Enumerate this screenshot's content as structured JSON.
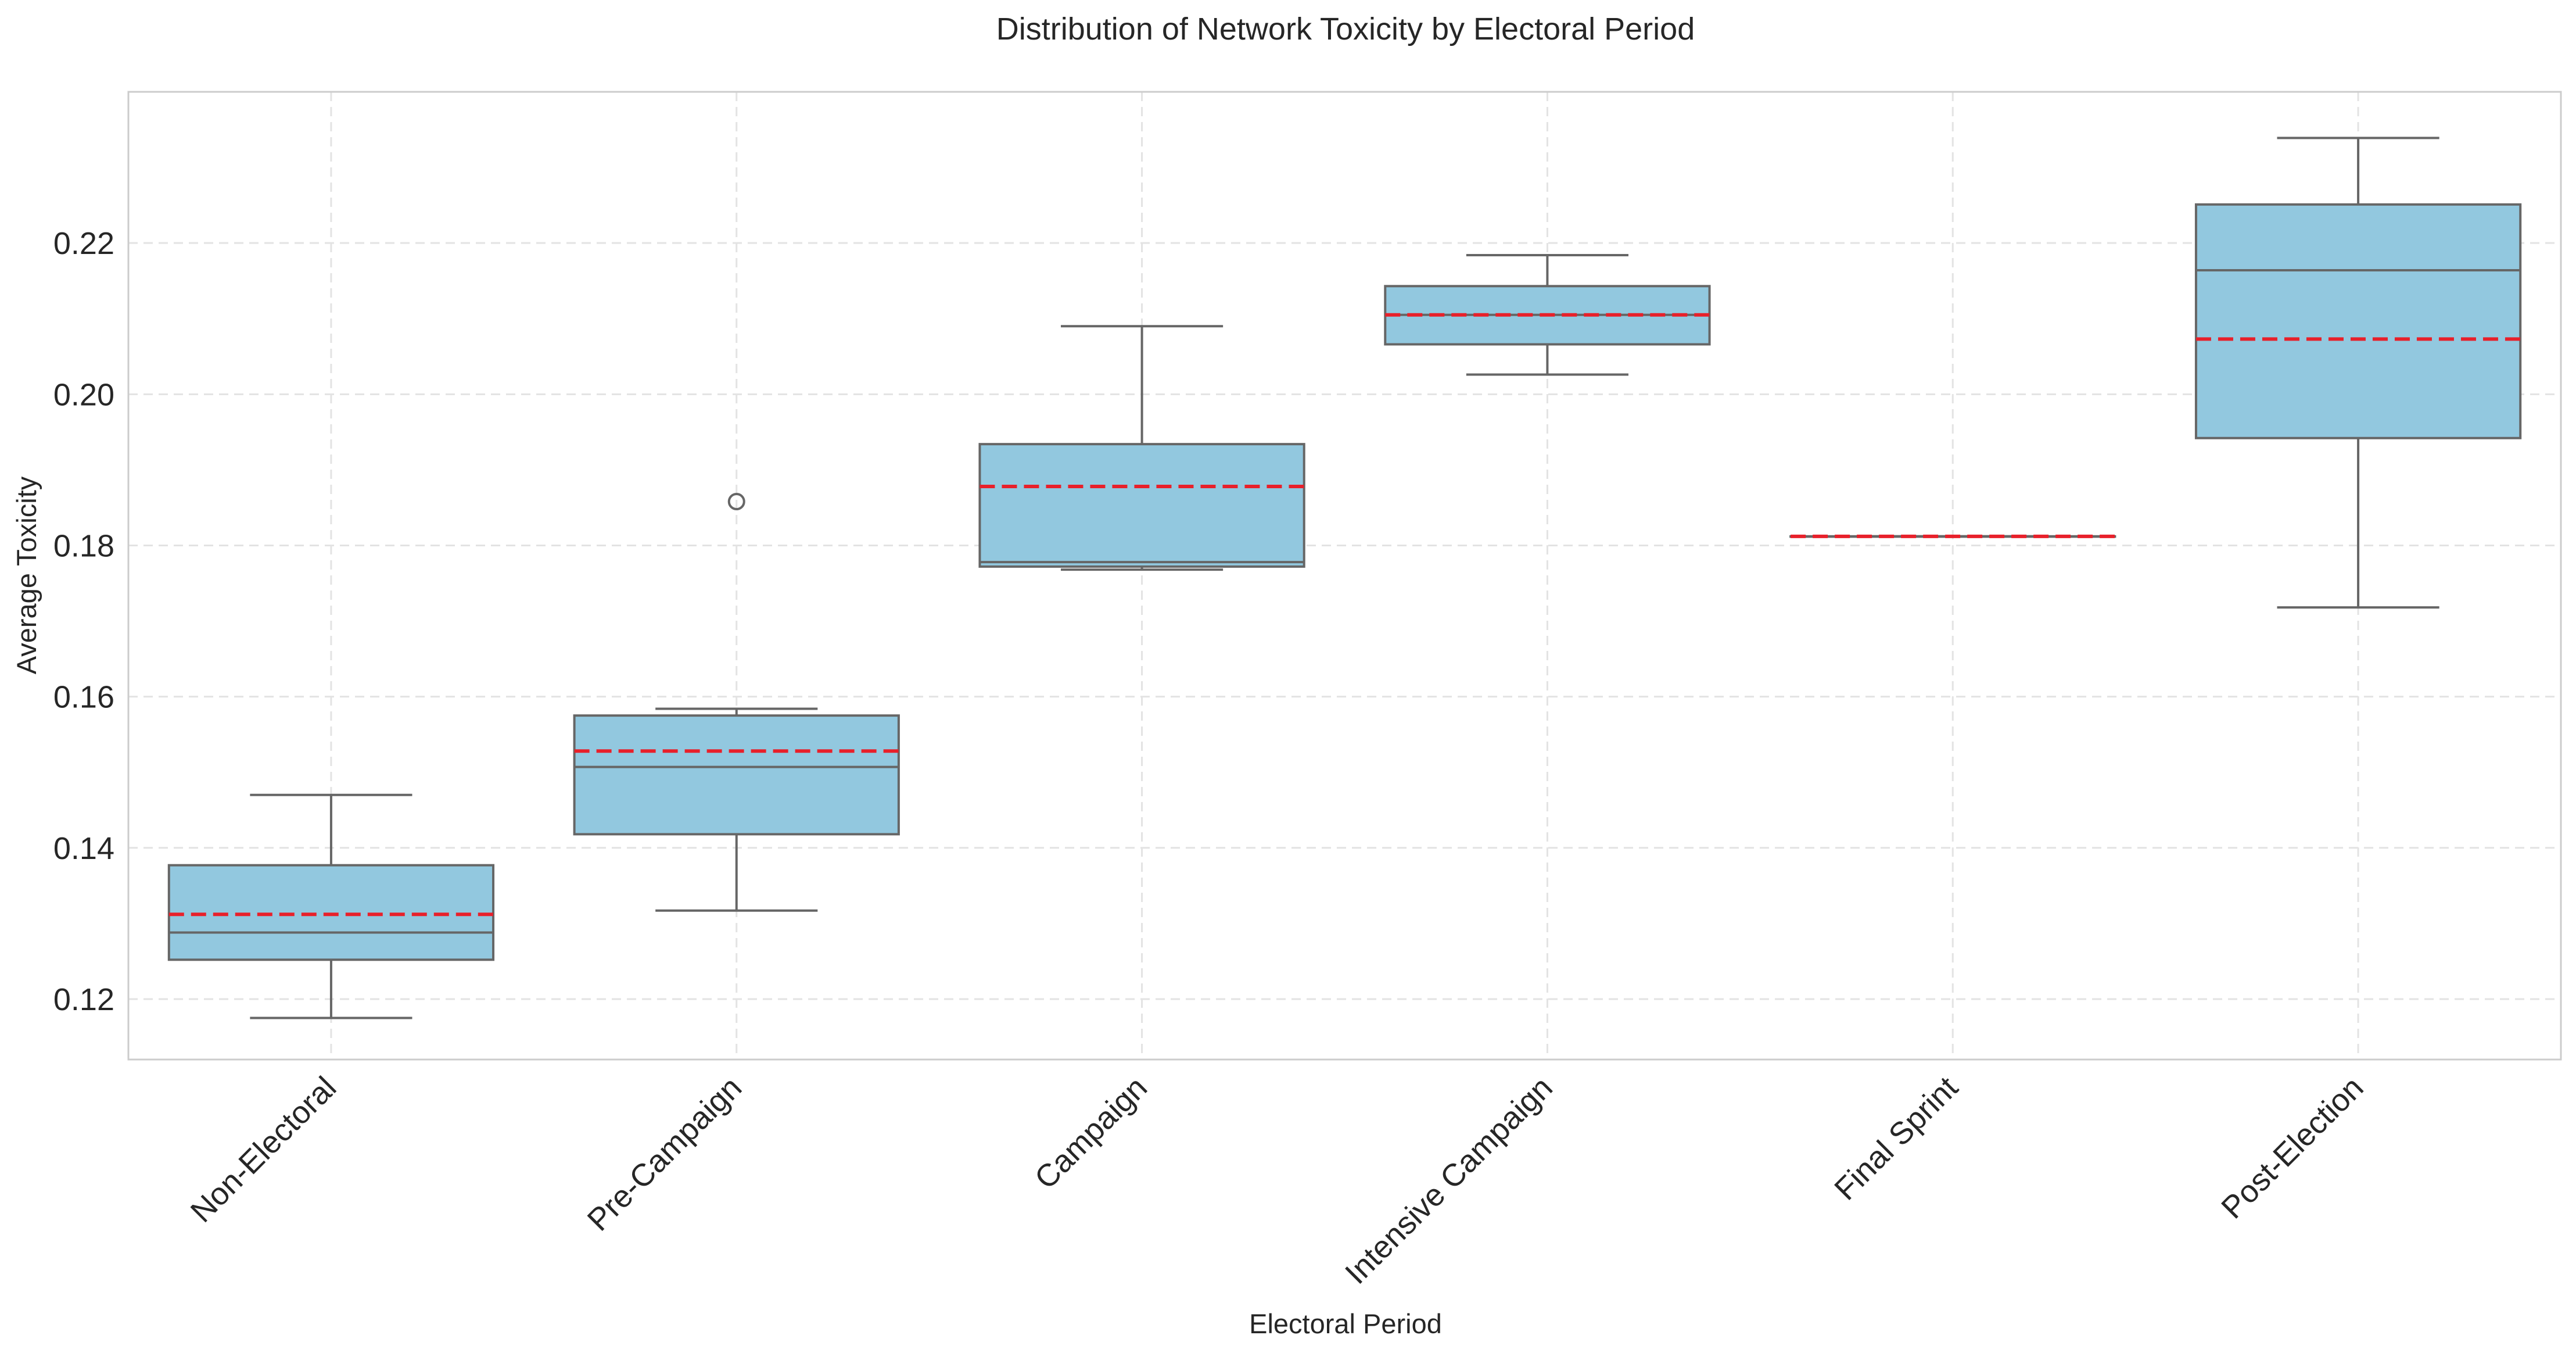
{
  "chart_data": {
    "type": "box",
    "title": "Distribution of Network Toxicity by Electoral Period",
    "xlabel": "Electoral Period",
    "ylabel": "Average Toxicity",
    "categories": [
      "Non-Electoral",
      "Pre-Campaign",
      "Campaign",
      "Intensive Campaign",
      "Final Sprint",
      "Post-Election"
    ],
    "boxes": [
      {
        "category": "Non-Electoral",
        "whisker_low": 0.1175,
        "q1": 0.1252,
        "median": 0.1288,
        "mean": 0.1312,
        "q3": 0.1377,
        "whisker_high": 0.147,
        "outliers": []
      },
      {
        "category": "Pre-Campaign",
        "whisker_low": 0.1317,
        "q1": 0.1418,
        "median": 0.1507,
        "mean": 0.1528,
        "q3": 0.1575,
        "whisker_high": 0.1584,
        "outliers": [
          0.1858
        ]
      },
      {
        "category": "Campaign",
        "whisker_low": 0.1768,
        "q1": 0.1772,
        "median": 0.1778,
        "mean": 0.1878,
        "q3": 0.1934,
        "whisker_high": 0.209,
        "outliers": []
      },
      {
        "category": "Intensive Campaign",
        "whisker_low": 0.2026,
        "q1": 0.2066,
        "median": 0.2105,
        "mean": 0.2105,
        "q3": 0.2143,
        "whisker_high": 0.2184,
        "outliers": []
      },
      {
        "category": "Final Sprint",
        "whisker_low": 0.1812,
        "q1": 0.1812,
        "median": 0.1812,
        "mean": 0.1812,
        "q3": 0.1812,
        "whisker_high": 0.1812,
        "outliers": []
      },
      {
        "category": "Post-Election",
        "whisker_low": 0.1718,
        "q1": 0.1942,
        "median": 0.2164,
        "mean": 0.2073,
        "q3": 0.2251,
        "whisker_high": 0.2339,
        "outliers": []
      }
    ],
    "yticks": [
      0.12,
      0.14,
      0.16,
      0.18,
      0.2,
      0.22
    ],
    "ytick_labels": [
      "0.12",
      "0.14",
      "0.16",
      "0.18",
      "0.20",
      "0.22"
    ],
    "ylim": [
      0.112,
      0.24
    ],
    "grid": true,
    "legend": false,
    "colors": {
      "box_fill": "#92c8df",
      "box_edge": "#666666",
      "mean": "#e8202a",
      "median": "#666666",
      "grid": "#e3e3e3",
      "frame": "#cccccc"
    }
  }
}
